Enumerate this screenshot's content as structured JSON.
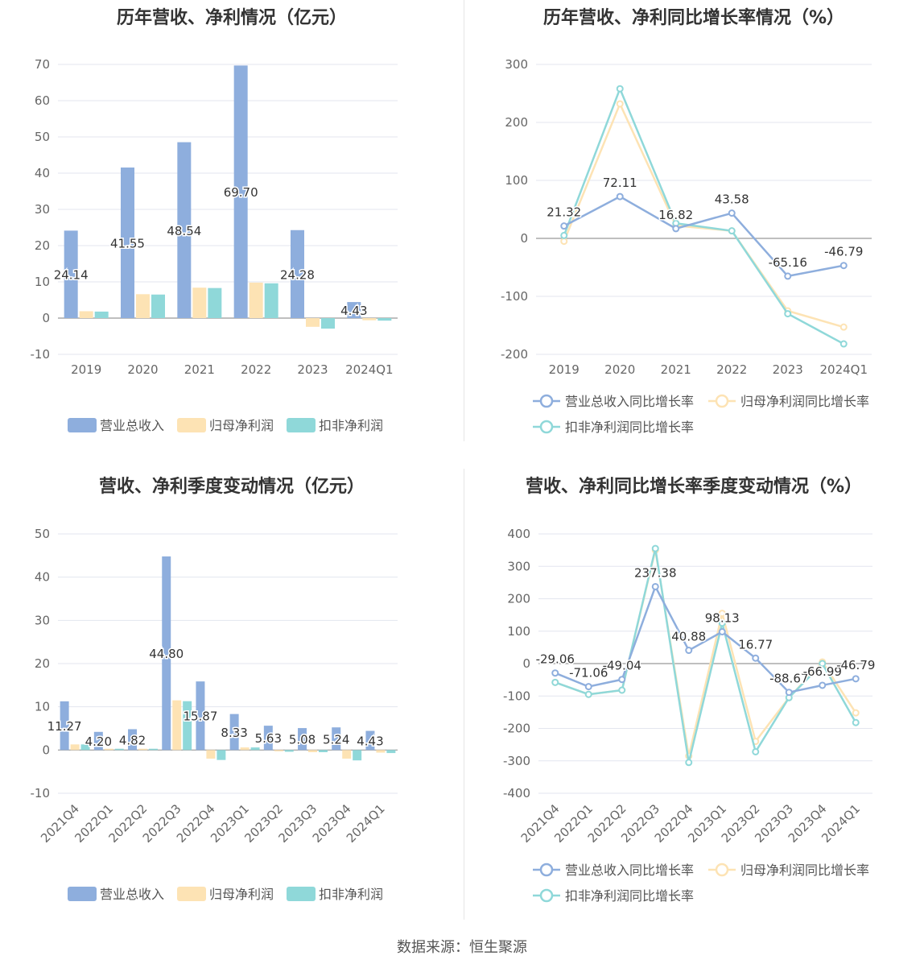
{
  "footer": "数据来源：恒生聚源",
  "colors": {
    "revenue": "#8eaedd",
    "net_profit": "#fde3b4",
    "deducted_profit": "#8fd8d9",
    "revenue_line": "#8eaedd",
    "net_line": "#fde3b4",
    "deducted_line": "#8fd8d9"
  },
  "chart_data": [
    {
      "id": "annual_amount",
      "type": "bar",
      "title": "历年营收、净利情况（亿元）",
      "categories": [
        "2019",
        "2020",
        "2021",
        "2022",
        "2023",
        "2024Q1"
      ],
      "ylim": [
        -10,
        70
      ],
      "yticks": [
        70,
        60,
        50,
        40,
        30,
        20,
        10,
        0,
        -10
      ],
      "grid": true,
      "legend_position": "bottom",
      "series": [
        {
          "name": "营业总收入",
          "values": [
            24.14,
            41.55,
            48.54,
            69.7,
            24.28,
            4.43
          ],
          "labels": [
            "24.14",
            "41.55",
            "48.54",
            "69.70",
            "24.28",
            "4.43"
          ]
        },
        {
          "name": "归母净利润",
          "values": [
            1.9,
            6.6,
            8.4,
            9.8,
            -2.4,
            -0.6
          ]
        },
        {
          "name": "扣非净利润",
          "values": [
            1.8,
            6.5,
            8.3,
            9.6,
            -2.9,
            -0.7
          ]
        }
      ]
    },
    {
      "id": "annual_growth",
      "type": "line",
      "title": "历年营收、净利同比增长率情况（%）",
      "categories": [
        "2019",
        "2020",
        "2021",
        "2022",
        "2023",
        "2024Q1"
      ],
      "ylim": [
        -200,
        300
      ],
      "yticks": [
        300,
        200,
        100,
        0,
        -100,
        -200
      ],
      "grid": true,
      "legend_position": "bottom",
      "series": [
        {
          "name": "营业总收入同比增长率",
          "values": [
            21.32,
            72.11,
            16.82,
            43.58,
            -65.16,
            -46.79
          ],
          "labels": [
            "21.32",
            "72.11",
            "16.82",
            "43.58",
            "-65.16",
            "-46.79"
          ]
        },
        {
          "name": "归母净利润同比增长率",
          "values": [
            -5,
            232,
            22,
            13,
            -125,
            -153
          ]
        },
        {
          "name": "扣非净利润同比增长率",
          "values": [
            5,
            258,
            26,
            13,
            -130,
            -182
          ]
        }
      ]
    },
    {
      "id": "quarterly_amount",
      "type": "bar",
      "title": "营收、净利季度变动情况（亿元）",
      "categories": [
        "2021Q4",
        "2022Q1",
        "2022Q2",
        "2022Q3",
        "2022Q4",
        "2023Q1",
        "2023Q2",
        "2023Q3",
        "2023Q4",
        "2024Q1"
      ],
      "ylim": [
        -10,
        50
      ],
      "yticks": [
        50,
        40,
        30,
        20,
        10,
        0,
        -10
      ],
      "grid": true,
      "legend_position": "bottom",
      "series": [
        {
          "name": "营业总收入",
          "values": [
            11.27,
            4.2,
            4.82,
            44.8,
            15.87,
            8.33,
            5.63,
            5.08,
            5.24,
            4.43
          ],
          "labels": [
            "11.27",
            "4.20",
            "4.82",
            "44.80",
            "15.87",
            "8.33",
            "5.63",
            "5.08",
            "5.24",
            "4.43"
          ]
        },
        {
          "name": "归母净利润",
          "values": [
            1.3,
            0.3,
            0.3,
            11.5,
            -2.0,
            0.6,
            -0.3,
            -0.5,
            -2.0,
            -0.6
          ]
        },
        {
          "name": "扣非净利润",
          "values": [
            1.3,
            0.3,
            0.3,
            11.3,
            -2.3,
            0.6,
            -0.4,
            -0.5,
            -2.4,
            -0.7
          ]
        }
      ]
    },
    {
      "id": "quarterly_growth",
      "type": "line",
      "title": "营收、净利同比增长率季度变动情况（%）",
      "categories": [
        "2021Q4",
        "2022Q1",
        "2022Q2",
        "2022Q3",
        "2022Q4",
        "2023Q1",
        "2023Q2",
        "2023Q3",
        "2023Q4",
        "2024Q1"
      ],
      "ylim": [
        -400,
        400
      ],
      "yticks": [
        400,
        300,
        200,
        100,
        0,
        -100,
        -200,
        -300,
        -400
      ],
      "grid": true,
      "legend_position": "bottom",
      "series": [
        {
          "name": "营业总收入同比增长率",
          "values": [
            -29.06,
            -71.06,
            -49.04,
            237.38,
            40.88,
            98.13,
            16.77,
            -88.67,
            -66.99,
            -46.79
          ],
          "labels": [
            "-29.06",
            "-71.06",
            "-49.04",
            "237.38",
            "40.88",
            "98.13",
            "16.77",
            "-88.67",
            "-66.99",
            "-46.79"
          ]
        },
        {
          "name": "归母净利润同比增长率",
          "values": [
            -58,
            -95,
            -82,
            350,
            -285,
            155,
            -240,
            -105,
            5,
            -152
          ]
        },
        {
          "name": "扣非净利润同比增长率",
          "values": [
            -58,
            -95,
            -82,
            355,
            -305,
            125,
            -272,
            -105,
            0,
            -182
          ]
        }
      ]
    }
  ]
}
